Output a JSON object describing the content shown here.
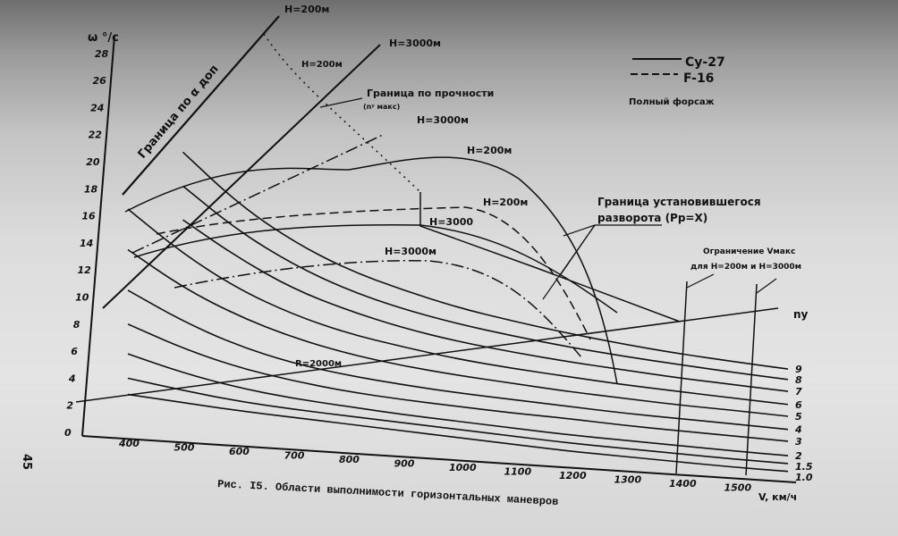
{
  "page_number": "45",
  "caption": "Рис. I5. Области выполнимости горизонтальных маневров",
  "legend": {
    "items": [
      {
        "label": "Су-27",
        "style": "solid"
      },
      {
        "label": "F-16",
        "style": "dashed"
      }
    ],
    "note": "Полный форсаж"
  },
  "annotations": {
    "alpha_boundary": "Граница по α доп",
    "h200_top": "H=200м",
    "h3000_top": "H=3000м",
    "h200_second": "H=200м",
    "strength_boundary": "Граница по прочности",
    "strength_sub": "(nʸ макс)",
    "h3000_strength": "H=3000м",
    "h200_hump": "H=200м",
    "h200_f16": "H=200м",
    "h3000_mid": "H=3000",
    "h3000_low": "H=3000м",
    "sustained_turn_1": "Граница установившегося",
    "sustained_turn_2": "разворота (Pp=X)",
    "vmax_1": "Ограничение Vмакс",
    "vmax_2": "для H=200м и H=3000м",
    "radius": "R=2000м"
  },
  "chart_data": {
    "type": "line",
    "title": "",
    "xlabel": "V, км/ч",
    "ylabel": "ω °/с",
    "xlim": [
      300,
      1600
    ],
    "ylim": [
      0,
      28
    ],
    "grid": false,
    "legend_position": "top-right",
    "x_ticks": [
      "400",
      "500",
      "600",
      "700",
      "800",
      "900",
      "1000",
      "1100",
      "1200",
      "1300",
      "1400",
      "1500"
    ],
    "y_ticks": [
      "0",
      "2",
      "4",
      "6",
      "8",
      "10",
      "12",
      "14",
      "16",
      "18",
      "20",
      "22",
      "24",
      "26",
      "28"
    ],
    "series_label": "ny",
    "x": [
      400,
      500,
      600,
      700,
      800,
      900,
      1000,
      1100,
      1200,
      1300,
      1400,
      1500
    ],
    "series": [
      {
        "name": "1.0",
        "values": [
          2.8,
          2.5,
          2.2,
          2.0,
          1.8,
          1.6,
          1.4,
          1.2,
          1.0,
          0.9,
          0.8,
          0.7
        ]
      },
      {
        "name": "1.5",
        "values": [
          4.0,
          3.4,
          2.9,
          2.6,
          2.4,
          2.2,
          2.0,
          1.8,
          1.6,
          1.5,
          1.4,
          1.3
        ]
      },
      {
        "name": "2",
        "values": [
          5.8,
          4.7,
          3.9,
          3.4,
          3.1,
          2.8,
          2.6,
          2.4,
          2.2,
          2.1,
          2.0,
          1.9
        ]
      },
      {
        "name": "3",
        "values": [
          8.0,
          6.5,
          5.4,
          4.7,
          4.2,
          3.9,
          3.7,
          3.5,
          3.4,
          3.2,
          3.1,
          3.0
        ]
      },
      {
        "name": "4",
        "values": [
          10.5,
          8.5,
          7.0,
          6.0,
          5.4,
          5.0,
          4.7,
          4.5,
          4.3,
          4.1,
          4.0,
          3.9
        ]
      },
      {
        "name": "5",
        "values": [
          13.5,
          11.0,
          9.2,
          7.9,
          7.0,
          6.4,
          6.0,
          5.7,
          5.4,
          5.2,
          5.0,
          4.9
        ]
      },
      {
        "name": "6",
        "values": [
          16.5,
          13.5,
          11.2,
          9.6,
          8.5,
          7.8,
          7.2,
          6.8,
          6.5,
          6.2,
          6.0,
          5.8
        ]
      },
      {
        "name": "7",
        "values": [
          null,
          16.0,
          13.5,
          11.5,
          10.2,
          9.2,
          8.5,
          8.0,
          7.6,
          7.3,
          7.0,
          6.8
        ]
      },
      {
        "name": "8",
        "values": [
          null,
          18.5,
          15.5,
          13.3,
          11.7,
          10.6,
          9.8,
          9.2,
          8.7,
          8.3,
          8.0,
          7.7
        ]
      },
      {
        "name": "9",
        "values": [
          null,
          21.0,
          17.5,
          15.0,
          13.2,
          12.0,
          11.0,
          10.3,
          9.7,
          9.2,
          8.8,
          8.5
        ]
      }
    ],
    "extra_series": [
      {
        "name": "R=2000м",
        "x": [
          300,
          1600
        ],
        "values": [
          2.5,
          9.5
        ]
      }
    ]
  }
}
